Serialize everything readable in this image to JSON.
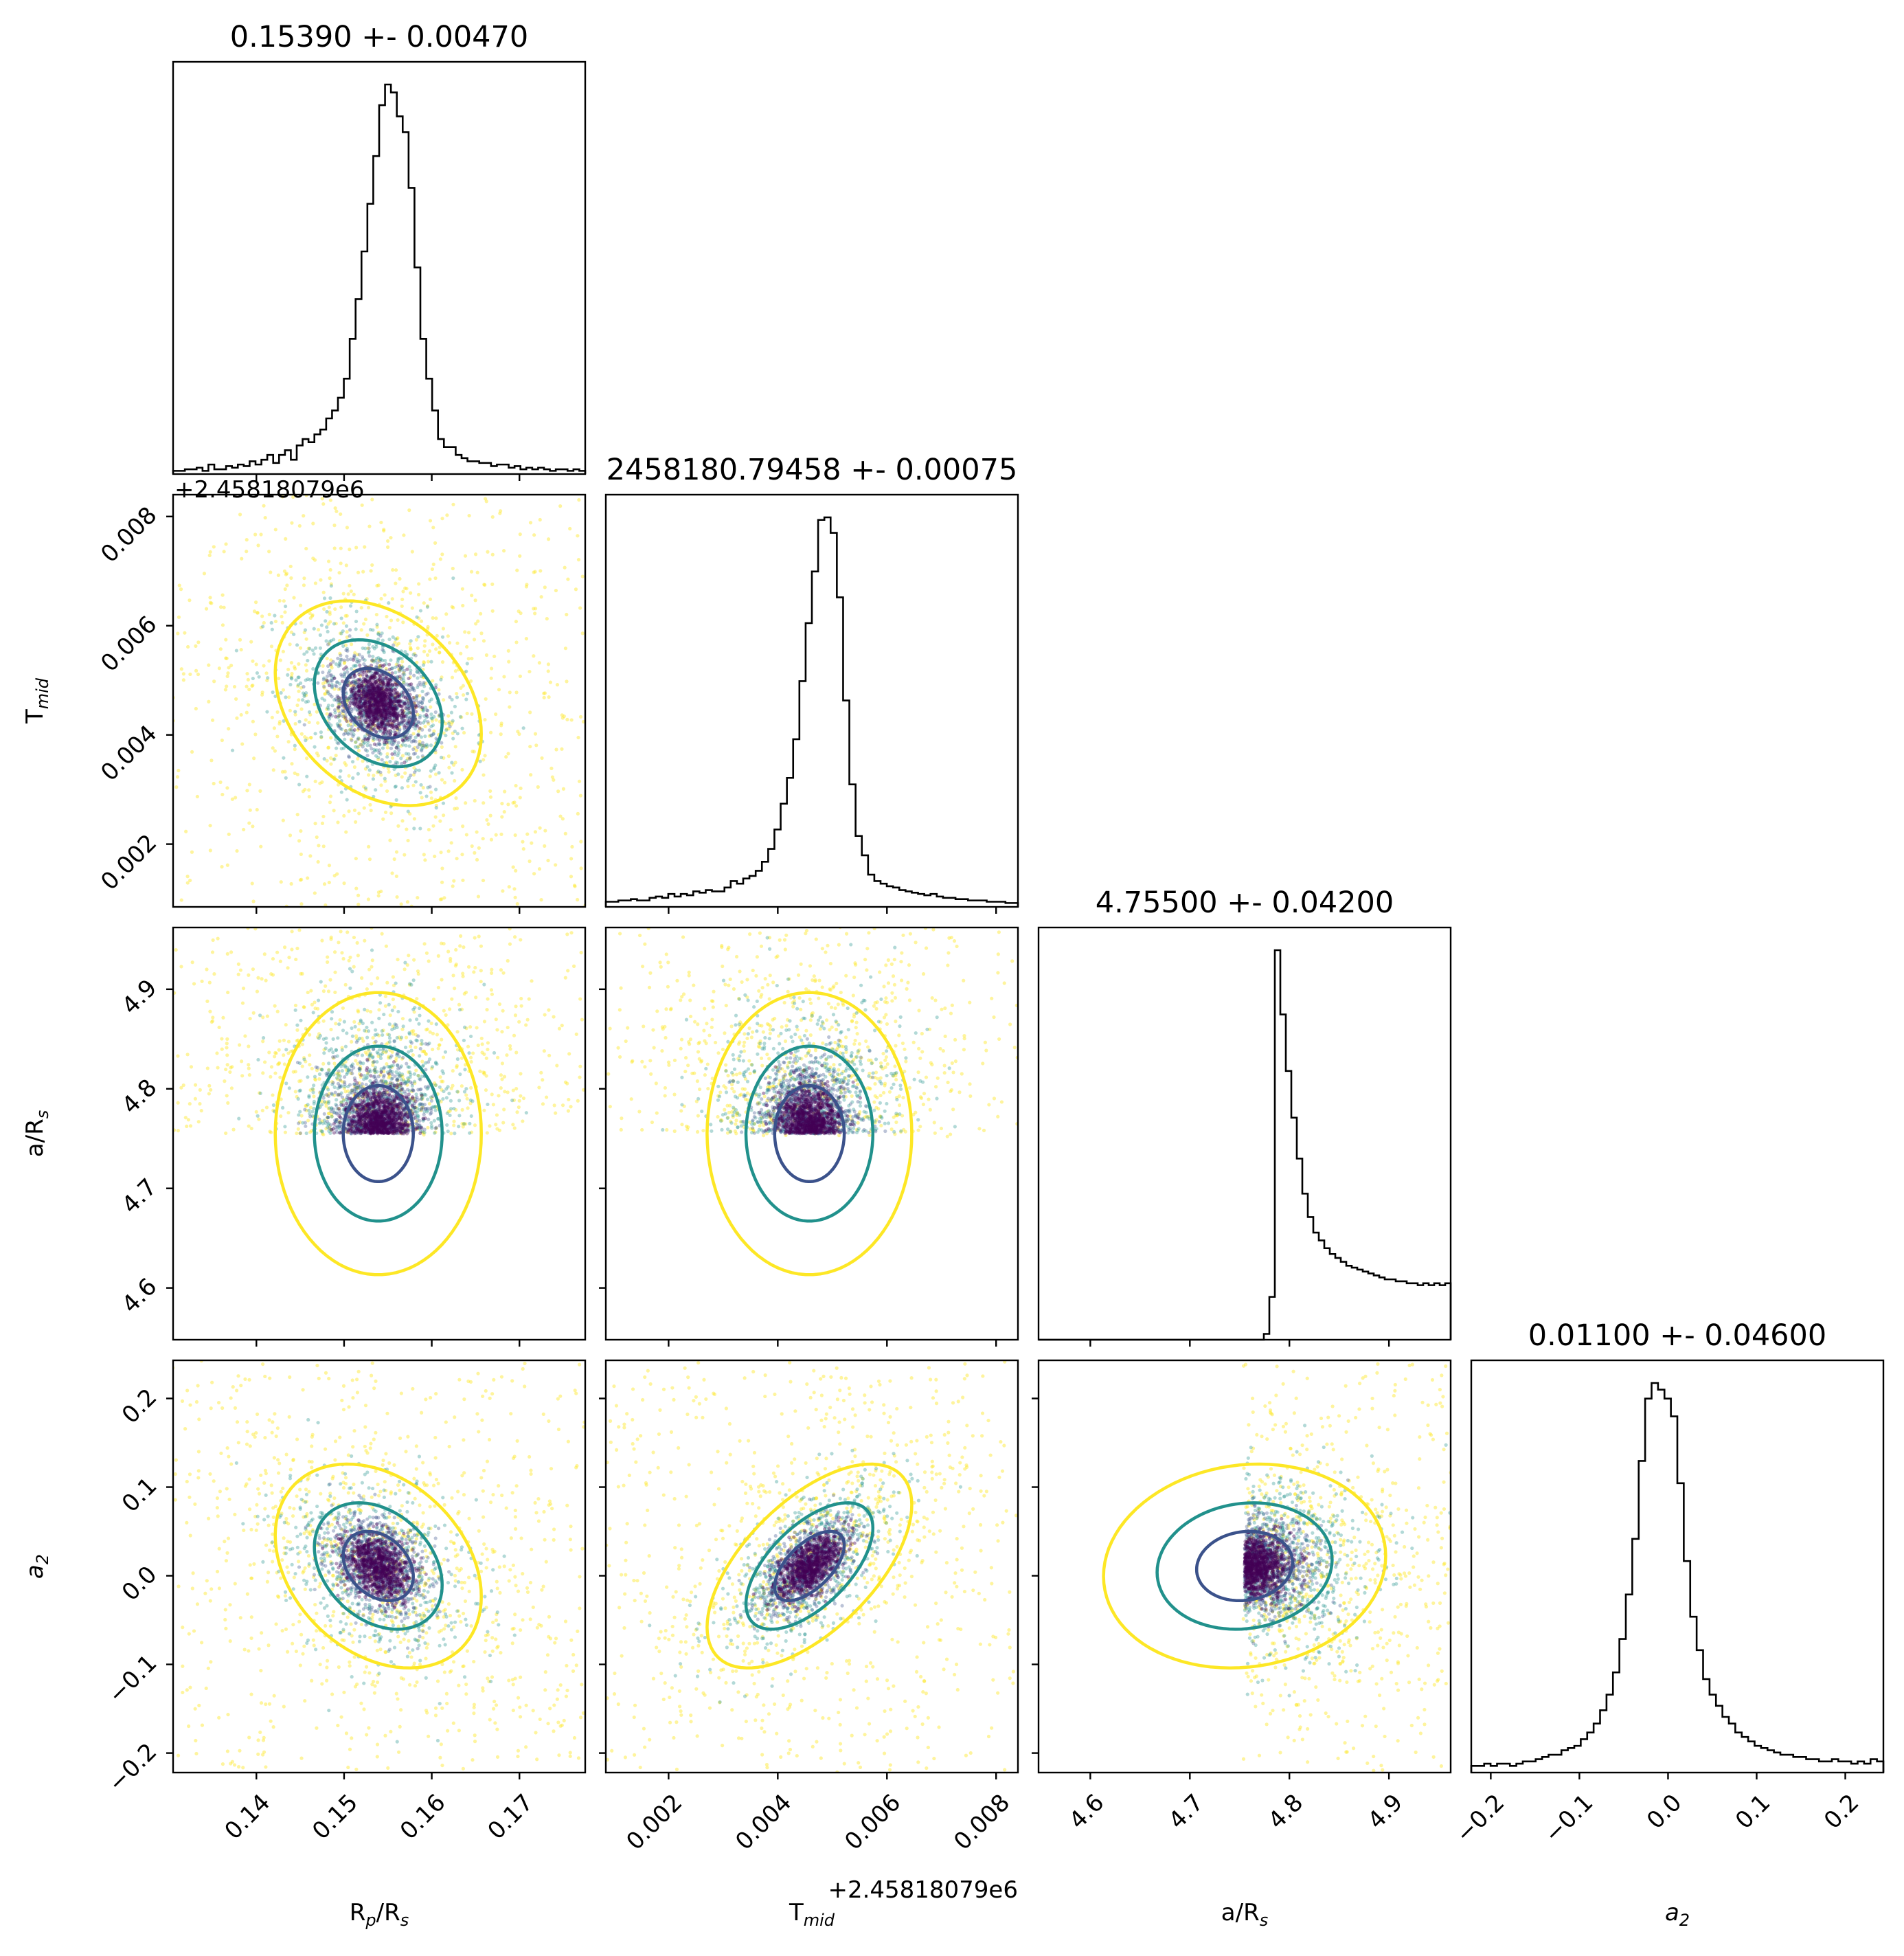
{
  "chart_data": {
    "type": "corner",
    "parameters": [
      {
        "key": "rprs",
        "label": "R",
        "sub": "p",
        "suffix": "/R",
        "sub2": "s",
        "range": [
          0.1305,
          0.1775
        ],
        "ticks": [
          0.14,
          0.15,
          0.16,
          0.17
        ],
        "tick_labels": [
          "0.14",
          "0.15",
          "0.16",
          "0.17"
        ],
        "title": "0.15390 +- 0.00470"
      },
      {
        "key": "tmid",
        "label": "T",
        "sub": "mid",
        "suffix": "",
        "sub2": "",
        "range": [
          0.00085,
          0.0084
        ],
        "ticks": [
          0.002,
          0.004,
          0.006,
          0.008
        ],
        "tick_labels": [
          "0.002",
          "0.004",
          "0.006",
          "0.008"
        ],
        "title": "2458180.79458 +- 0.00075",
        "offset": "+2.45818079e6"
      },
      {
        "key": "ars",
        "label": "a/R",
        "sub": "s",
        "suffix": "",
        "sub2": "",
        "range": [
          4.548,
          4.962
        ],
        "ticks": [
          4.6,
          4.7,
          4.8,
          4.9
        ],
        "tick_labels": [
          "4.6",
          "4.7",
          "4.8",
          "4.9"
        ],
        "title": "4.75500 +- 0.04200"
      },
      {
        "key": "a2",
        "label": "a",
        "sub": "2",
        "suffix": "",
        "sub2": "",
        "italic": true,
        "range": [
          -0.222,
          0.243
        ],
        "ticks": [
          -0.2,
          -0.1,
          0.0,
          0.1,
          0.2
        ],
        "tick_labels": [
          "−0.2",
          "−0.1",
          "0.0",
          "0.1",
          "0.2"
        ],
        "title": "0.01100 +- 0.04600"
      }
    ],
    "histograms": {
      "rprs": [
        2,
        2,
        3,
        3,
        4,
        2,
        6,
        3,
        3,
        5,
        4,
        6,
        5,
        8,
        6,
        9,
        12,
        7,
        12,
        15,
        9,
        18,
        22,
        20,
        25,
        28,
        35,
        40,
        48,
        60,
        85,
        110,
        140,
        170,
        200,
        232,
        245,
        240,
        225,
        215,
        180,
        130,
        85,
        60,
        40,
        22,
        17,
        17,
        12,
        10,
        8,
        8,
        7,
        7,
        5,
        6,
        6,
        4,
        5,
        3,
        4,
        3,
        4,
        3,
        2,
        3,
        3,
        2,
        3,
        2
      ],
      "tmid": [
        4,
        4,
        5,
        5,
        6,
        5,
        5,
        7,
        8,
        7,
        10,
        8,
        10,
        9,
        12,
        11,
        13,
        12,
        12,
        15,
        20,
        18,
        22,
        24,
        28,
        35,
        45,
        60,
        80,
        100,
        130,
        175,
        220,
        260,
        300,
        302,
        290,
        240,
        160,
        95,
        55,
        40,
        25,
        20,
        18,
        16,
        15,
        13,
        12,
        11,
        10,
        9,
        10,
        8,
        7,
        7,
        6,
        6,
        5,
        5,
        5,
        4,
        4,
        4,
        3,
        3
      ],
      "ars": [
        0,
        0,
        0,
        0,
        0,
        0,
        0,
        0,
        0,
        0,
        0,
        0,
        0,
        0,
        0,
        0,
        0,
        0,
        0,
        0,
        0,
        0,
        0,
        0,
        0,
        0,
        0,
        0,
        0,
        0,
        0,
        0,
        0,
        0,
        0,
        0,
        0,
        0,
        0,
        0,
        0,
        3,
        22,
        200,
        167,
        138,
        114,
        93,
        75,
        63,
        55,
        51,
        47,
        44,
        42,
        40,
        38,
        37,
        36,
        35,
        34,
        33,
        32,
        31,
        31,
        30,
        30,
        29,
        29,
        28,
        29,
        28,
        29,
        28,
        29
      ],
      "a2": [
        3,
        3,
        4,
        3,
        4,
        4,
        3,
        4,
        5,
        5,
        6,
        7,
        8,
        8,
        10,
        11,
        12,
        15,
        18,
        22,
        28,
        35,
        45,
        60,
        80,
        105,
        140,
        168,
        175,
        172,
        168,
        160,
        130,
        95,
        70,
        55,
        42,
        35,
        30,
        25,
        22,
        18,
        16,
        14,
        12,
        11,
        10,
        9,
        8,
        8,
        7,
        7,
        6,
        6,
        5,
        5,
        6,
        5,
        5,
        4,
        5,
        4,
        6,
        5
      ]
    },
    "marginal_peaks": {
      "rprs": 0.1539,
      "tmid": 0.00458,
      "ars": 4.755,
      "a2": 0.011
    },
    "marginal_widths": {
      "rprs": 0.0047,
      "tmid": 0.00075,
      "ars": 0.042,
      "a2": 0.046
    },
    "contour_levels": [
      "1-sigma",
      "2-sigma",
      "3-sigma"
    ],
    "colors": {
      "sigma1": "#3b528b",
      "sigma2": "#21918c",
      "sigma3": "#fde725",
      "dense": "#440154"
    },
    "grid": false
  }
}
